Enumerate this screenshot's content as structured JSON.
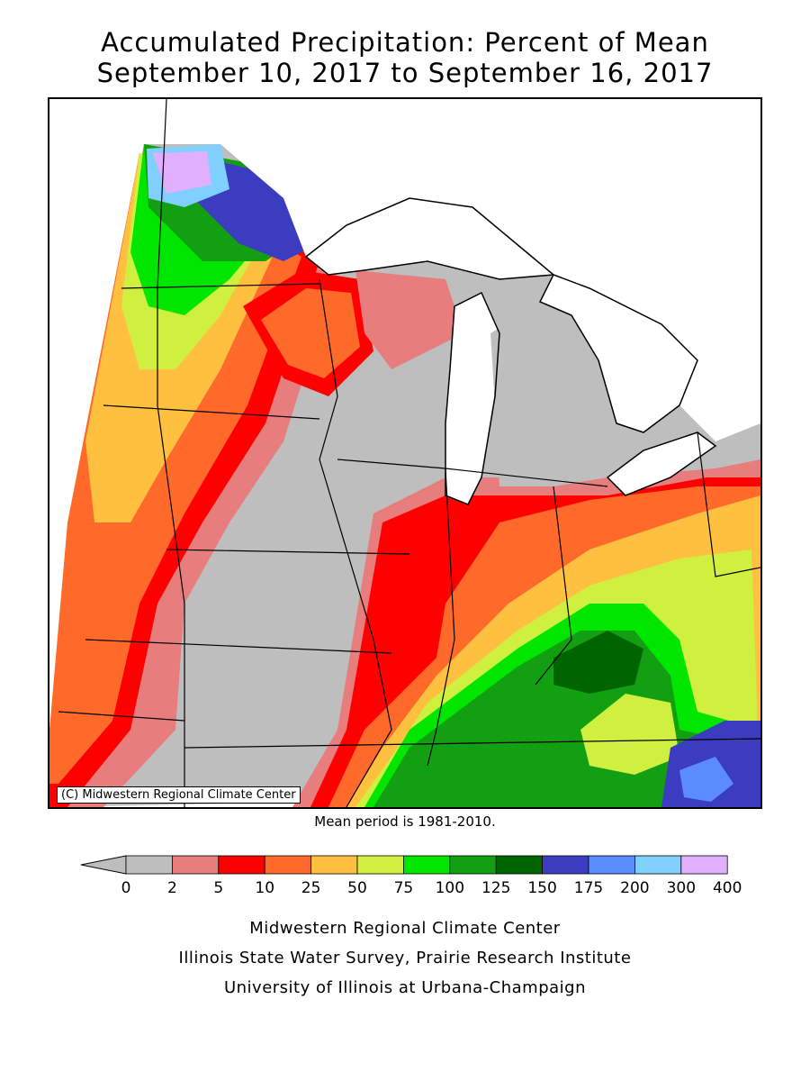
{
  "title": {
    "line1": "Accumulated Precipitation: Percent of Mean",
    "line2": "September 10, 2017 to September 16, 2017"
  },
  "map": {
    "copyright": "(C) Midwestern Regional Climate Center",
    "region_colors": {
      "gray": "#bebebe",
      "pink": "#e87d7d",
      "red": "#ff0000",
      "orange": "#ff6a2a",
      "lightorange": "#ffc040",
      "yellowgreen": "#d0f040",
      "green": "#00e600",
      "midgreen": "#12a012",
      "darkgreen": "#006400",
      "navy": "#3c3cc0",
      "blue": "#5a8cff",
      "lightblue": "#80d0ff",
      "lavender": "#e0b0ff",
      "water": "#ffffff"
    }
  },
  "mean_period": "Mean period is 1981-2010.",
  "legend": {
    "labels": [
      "0",
      "2",
      "5",
      "10",
      "25",
      "50",
      "75",
      "100",
      "125",
      "150",
      "175",
      "200",
      "300",
      "400"
    ],
    "colors": [
      "#bebebe",
      "#e87d7d",
      "#ff0000",
      "#ff6a2a",
      "#ffc040",
      "#d0f040",
      "#00e600",
      "#12a012",
      "#006400",
      "#3c3cc0",
      "#5a8cff",
      "#80d0ff",
      "#e0b0ff"
    ],
    "arrow_color": "#bebebe"
  },
  "footer": {
    "line1": "Midwestern Regional Climate Center",
    "line2": "Illinois State Water Survey, Prairie Research Institute",
    "line3": "University of Illinois at Urbana-Champaign"
  }
}
